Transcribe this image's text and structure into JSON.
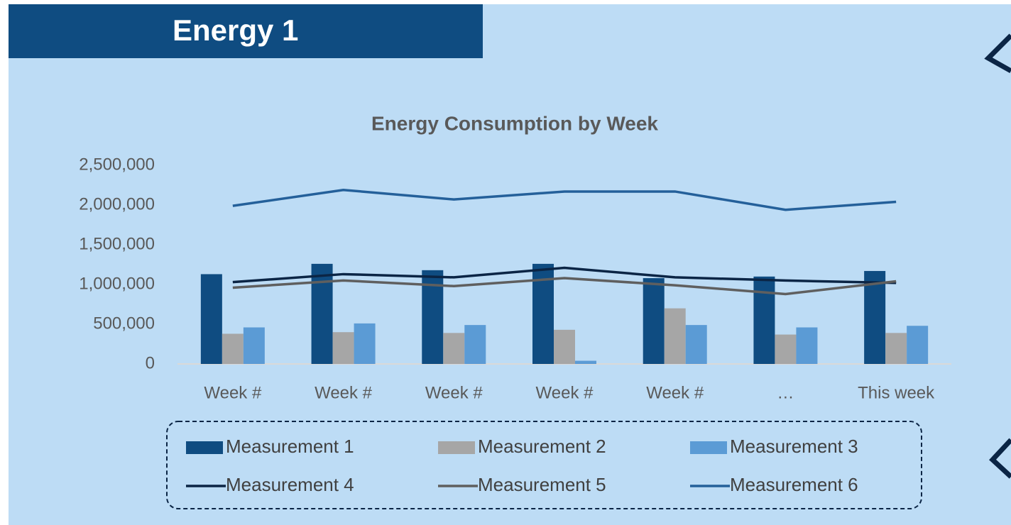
{
  "header": {
    "title": "Energy 1"
  },
  "chart_data": {
    "type": "bar",
    "title": "Energy Consumption by Week",
    "categories": [
      "Week #",
      "Week #",
      "Week #",
      "Week #",
      "Week #",
      "…",
      "This week"
    ],
    "series": [
      {
        "name": "Measurement 1",
        "type": "bar",
        "color": "#0f4c81",
        "values": [
          1130000,
          1260000,
          1180000,
          1260000,
          1080000,
          1100000,
          1170000
        ]
      },
      {
        "name": "Measurement 2",
        "type": "bar",
        "color": "#a6a6a6",
        "values": [
          380000,
          400000,
          390000,
          430000,
          700000,
          370000,
          390000
        ]
      },
      {
        "name": "Measurement 3",
        "type": "bar",
        "color": "#5b9bd5",
        "values": [
          460000,
          510000,
          490000,
          40000,
          490000,
          460000,
          480000
        ]
      },
      {
        "name": "Measurement 4",
        "type": "line",
        "color": "#0b2545",
        "values": [
          1030000,
          1130000,
          1090000,
          1210000,
          1090000,
          1050000,
          1020000
        ]
      },
      {
        "name": "Measurement 5",
        "type": "line",
        "color": "#5f5f5f",
        "values": [
          960000,
          1050000,
          980000,
          1080000,
          990000,
          880000,
          1040000
        ]
      },
      {
        "name": "Measurement 6",
        "type": "line",
        "color": "#24609a",
        "values": [
          1990000,
          2190000,
          2070000,
          2170000,
          2170000,
          1940000,
          2040000
        ]
      }
    ],
    "ylim": [
      0,
      2500000
    ],
    "yticks": [
      0,
      {
        "value": 500000,
        "label": "500,000"
      },
      {
        "value": 1000000,
        "label": "1,000,000"
      },
      {
        "value": 1500000,
        "label": "1,500,000"
      },
      {
        "value": 2000000,
        "label": "2,000,000"
      },
      {
        "value": 2500000,
        "label": "2,500,000"
      }
    ],
    "grid": false,
    "legend": "bottom"
  }
}
